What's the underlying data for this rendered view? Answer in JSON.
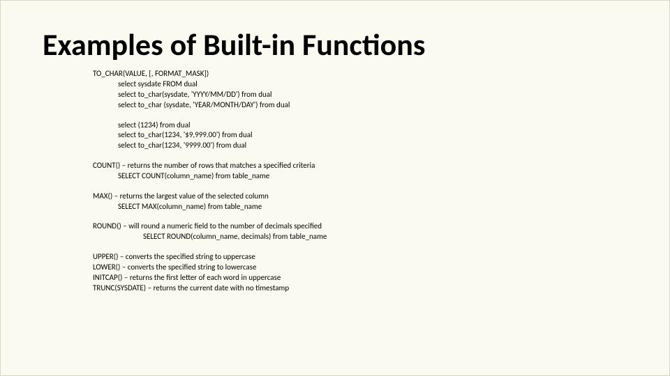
{
  "title": "Examples of Built-in Functions",
  "tochar_header": "TO_CHAR(VALUE, [, FORMAT_MASK])",
  "tochar_ex1": "select sysdate FROM dual",
  "tochar_ex2": "select to_char(sysdate, 'YYYY/MM/DD') from dual",
  "tochar_ex3": "select to_char (sysdate, 'YEAR/MONTH/DAY') from dual",
  "tochar_ex4": "select (1234) from dual",
  "tochar_ex5": "select to_char(1234, '$9,999.00') from dual",
  "tochar_ex6": "select to_char(1234, '9999.00') from dual",
  "count_desc": "COUNT() – returns the number of rows that matches a specified criteria",
  "count_ex": "SELECT COUNT(column_name) from table_name",
  "max_desc": "MAX() – returns the largest value of the selected column",
  "max_ex": "SELECT MAX(column_name) from table_name",
  "round_desc": "ROUND() – will round a numeric field to the number of decimals specified",
  "round_ex": "SELECT ROUND(column_name, decimals) from table_name",
  "upper_desc": "UPPER() – converts the specified string to uppercase",
  "lower_desc": "LOWER() – converts the specified string to lowercase",
  "initcap_desc": "INITCAP() – returns the first letter of each word in uppercase",
  "trunc_desc": "TRUNC(SYSDATE) – returns the current date with no timestamp"
}
